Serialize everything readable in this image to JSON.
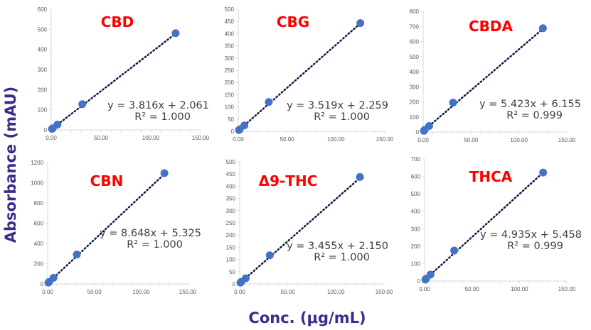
{
  "y_axis_label": "Absorbance (mAU)",
  "x_axis_label": "Conc. (μg/mL)",
  "colors": {
    "marker": "#4472c4",
    "trendline": "#0d1a4a",
    "title": "#ff0000",
    "axis_label": "#3d2a8a"
  },
  "chart_data": [
    {
      "type": "scatter",
      "title": "CBD",
      "x": [
        0.78,
        1.56,
        6.25,
        31.25,
        125
      ],
      "y": [
        5,
        8,
        26,
        128,
        481
      ],
      "trendline": {
        "style": "dotted",
        "equation": "y = 3.816x + 2.061",
        "r2": "R² = 1.000"
      },
      "xlim": [
        0,
        150
      ],
      "ylim": [
        0,
        600
      ],
      "xticks": [
        "0.00",
        "50.00",
        "100.00",
        "150.00"
      ],
      "yticks": [
        "0",
        "100",
        "200",
        "300",
        "400",
        "500",
        "600"
      ],
      "grid": false
    },
    {
      "type": "scatter",
      "title": "CBG",
      "x": [
        0.78,
        1.56,
        6.25,
        31.25,
        125
      ],
      "y": [
        5,
        8,
        24,
        120,
        443
      ],
      "trendline": {
        "style": "dotted",
        "equation": "y = 3.519x + 2.259",
        "r2": "R² = 1.000"
      },
      "xlim": [
        0,
        150
      ],
      "ylim": [
        0,
        500
      ],
      "xticks": [
        "0.00",
        "50.00",
        "100.00",
        "150.00"
      ],
      "yticks": [
        "0",
        "50",
        "100",
        "150",
        "200",
        "250",
        "300",
        "350",
        "400",
        "450",
        "500"
      ],
      "grid": false
    },
    {
      "type": "scatter",
      "title": "CBDA",
      "x": [
        0.78,
        1.56,
        6.25,
        31.25,
        125
      ],
      "y": [
        8,
        14,
        40,
        195,
        688
      ],
      "trendline": {
        "style": "dotted",
        "equation": "y = 5.423x + 6.155",
        "r2": "R² = 0.999"
      },
      "xlim": [
        0,
        150
      ],
      "ylim": [
        0,
        800
      ],
      "xticks": [
        "0.00",
        "50.00",
        "100.00",
        "150.00"
      ],
      "yticks": [
        "0",
        "100",
        "200",
        "300",
        "400",
        "500",
        "600",
        "700",
        "800"
      ],
      "grid": false
    },
    {
      "type": "scatter",
      "title": "CBN",
      "x": [
        0.78,
        1.56,
        6.25,
        31.25,
        125
      ],
      "y": [
        12,
        19,
        60,
        290,
        1095
      ],
      "trendline": {
        "style": "dotted",
        "equation": "y = 8.648x + 5.325",
        "r2": "R² = 1.000"
      },
      "xlim": [
        0,
        150
      ],
      "ylim": [
        0,
        1200
      ],
      "xticks": [
        "0.00",
        "50.00",
        "100.00",
        "150.00"
      ],
      "yticks": [
        "0",
        "200",
        "400",
        "600",
        "800",
        "1000",
        "1200"
      ],
      "grid": false
    },
    {
      "type": "scatter",
      "title": "Δ9-THC",
      "x": [
        0.78,
        1.56,
        6.25,
        31.25,
        125
      ],
      "y": [
        5,
        8,
        23,
        117,
        438
      ],
      "trendline": {
        "style": "dotted",
        "equation": "y = 3.455x + 2.150",
        "r2": "R² = 1.000"
      },
      "xlim": [
        0,
        150
      ],
      "ylim": [
        0,
        500
      ],
      "xticks": [
        "0.00",
        "50.00",
        "100.00",
        "150.00"
      ],
      "yticks": [
        "0",
        "50",
        "100",
        "150",
        "200",
        "250",
        "300",
        "350",
        "400",
        "450",
        "500"
      ],
      "grid": false
    },
    {
      "type": "scatter",
      "title": "THCA",
      "x": [
        0.78,
        1.56,
        6.25,
        31.25,
        125
      ],
      "y": [
        8,
        13,
        37,
        175,
        622
      ],
      "trendline": {
        "style": "dotted",
        "equation": "y = 4.935x + 5.458",
        "r2": "R² = 0.999"
      },
      "xlim": [
        0,
        150
      ],
      "ylim": [
        0,
        700
      ],
      "xticks": [
        "0.00",
        "50.00",
        "100.00",
        "150.00"
      ],
      "yticks": [
        "0",
        "100",
        "200",
        "300",
        "400",
        "500",
        "600",
        "700"
      ],
      "grid": false
    }
  ]
}
